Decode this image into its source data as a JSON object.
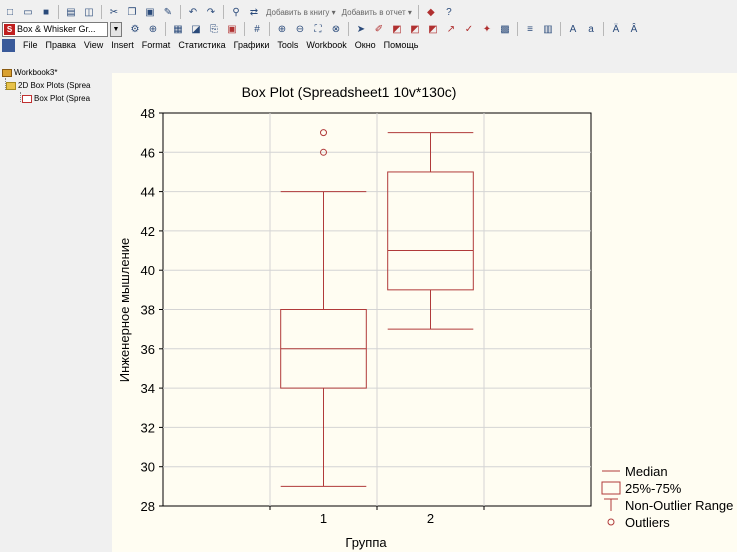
{
  "toolbar_top": {
    "buttons": [
      "new-icon",
      "open-icon",
      "save-icon",
      "print-icon",
      "print-preview-icon",
      "cut-icon",
      "copy-icon",
      "paste-icon",
      "format-painter-icon",
      "undo-icon",
      "redo-icon",
      "find-icon",
      "replace-icon"
    ],
    "add_to_workbook": "Добавить в книгу",
    "add_to_report": "Добавить в отчет",
    "dropdown_arrow": "▾"
  },
  "toolbar_graph": {
    "graph_type_combo": "Box & Whisker Gr...",
    "graph_type_icon_letter": "S"
  },
  "menu": {
    "items": [
      "File",
      "Правка",
      "View",
      "Insert",
      "Format",
      "Статистика",
      "Графики",
      "Tools",
      "Workbook",
      "Окно",
      "Помощь"
    ]
  },
  "tree": {
    "root": "Workbook3*",
    "folder": "2D Box Plots (Sprea",
    "item": "Box Plot (Sprea"
  },
  "chart_data": {
    "type": "box",
    "title": "Box Plot (Spreadsheet1 10v*130c)",
    "xlabel": "Группа",
    "ylabel": "Инженерное мышление",
    "ylim": [
      28,
      48
    ],
    "yticks": [
      28,
      30,
      32,
      34,
      36,
      38,
      40,
      42,
      44,
      46,
      48
    ],
    "categories": [
      "1",
      "2"
    ],
    "boxes": [
      {
        "category": "1",
        "median": 36,
        "q1": 34,
        "q3": 38,
        "whisker_low": 29,
        "whisker_high": 44,
        "outliers": [
          46,
          47
        ]
      },
      {
        "category": "2",
        "median": 41,
        "q1": 39,
        "q3": 45,
        "whisker_low": 37,
        "whisker_high": 47,
        "outliers": []
      }
    ],
    "grid": true,
    "legend_position": "bottom-right",
    "legend": [
      "Median",
      "25%-75%",
      "Non-Outlier Range",
      "Outliers"
    ],
    "color": "#b03a3a"
  }
}
